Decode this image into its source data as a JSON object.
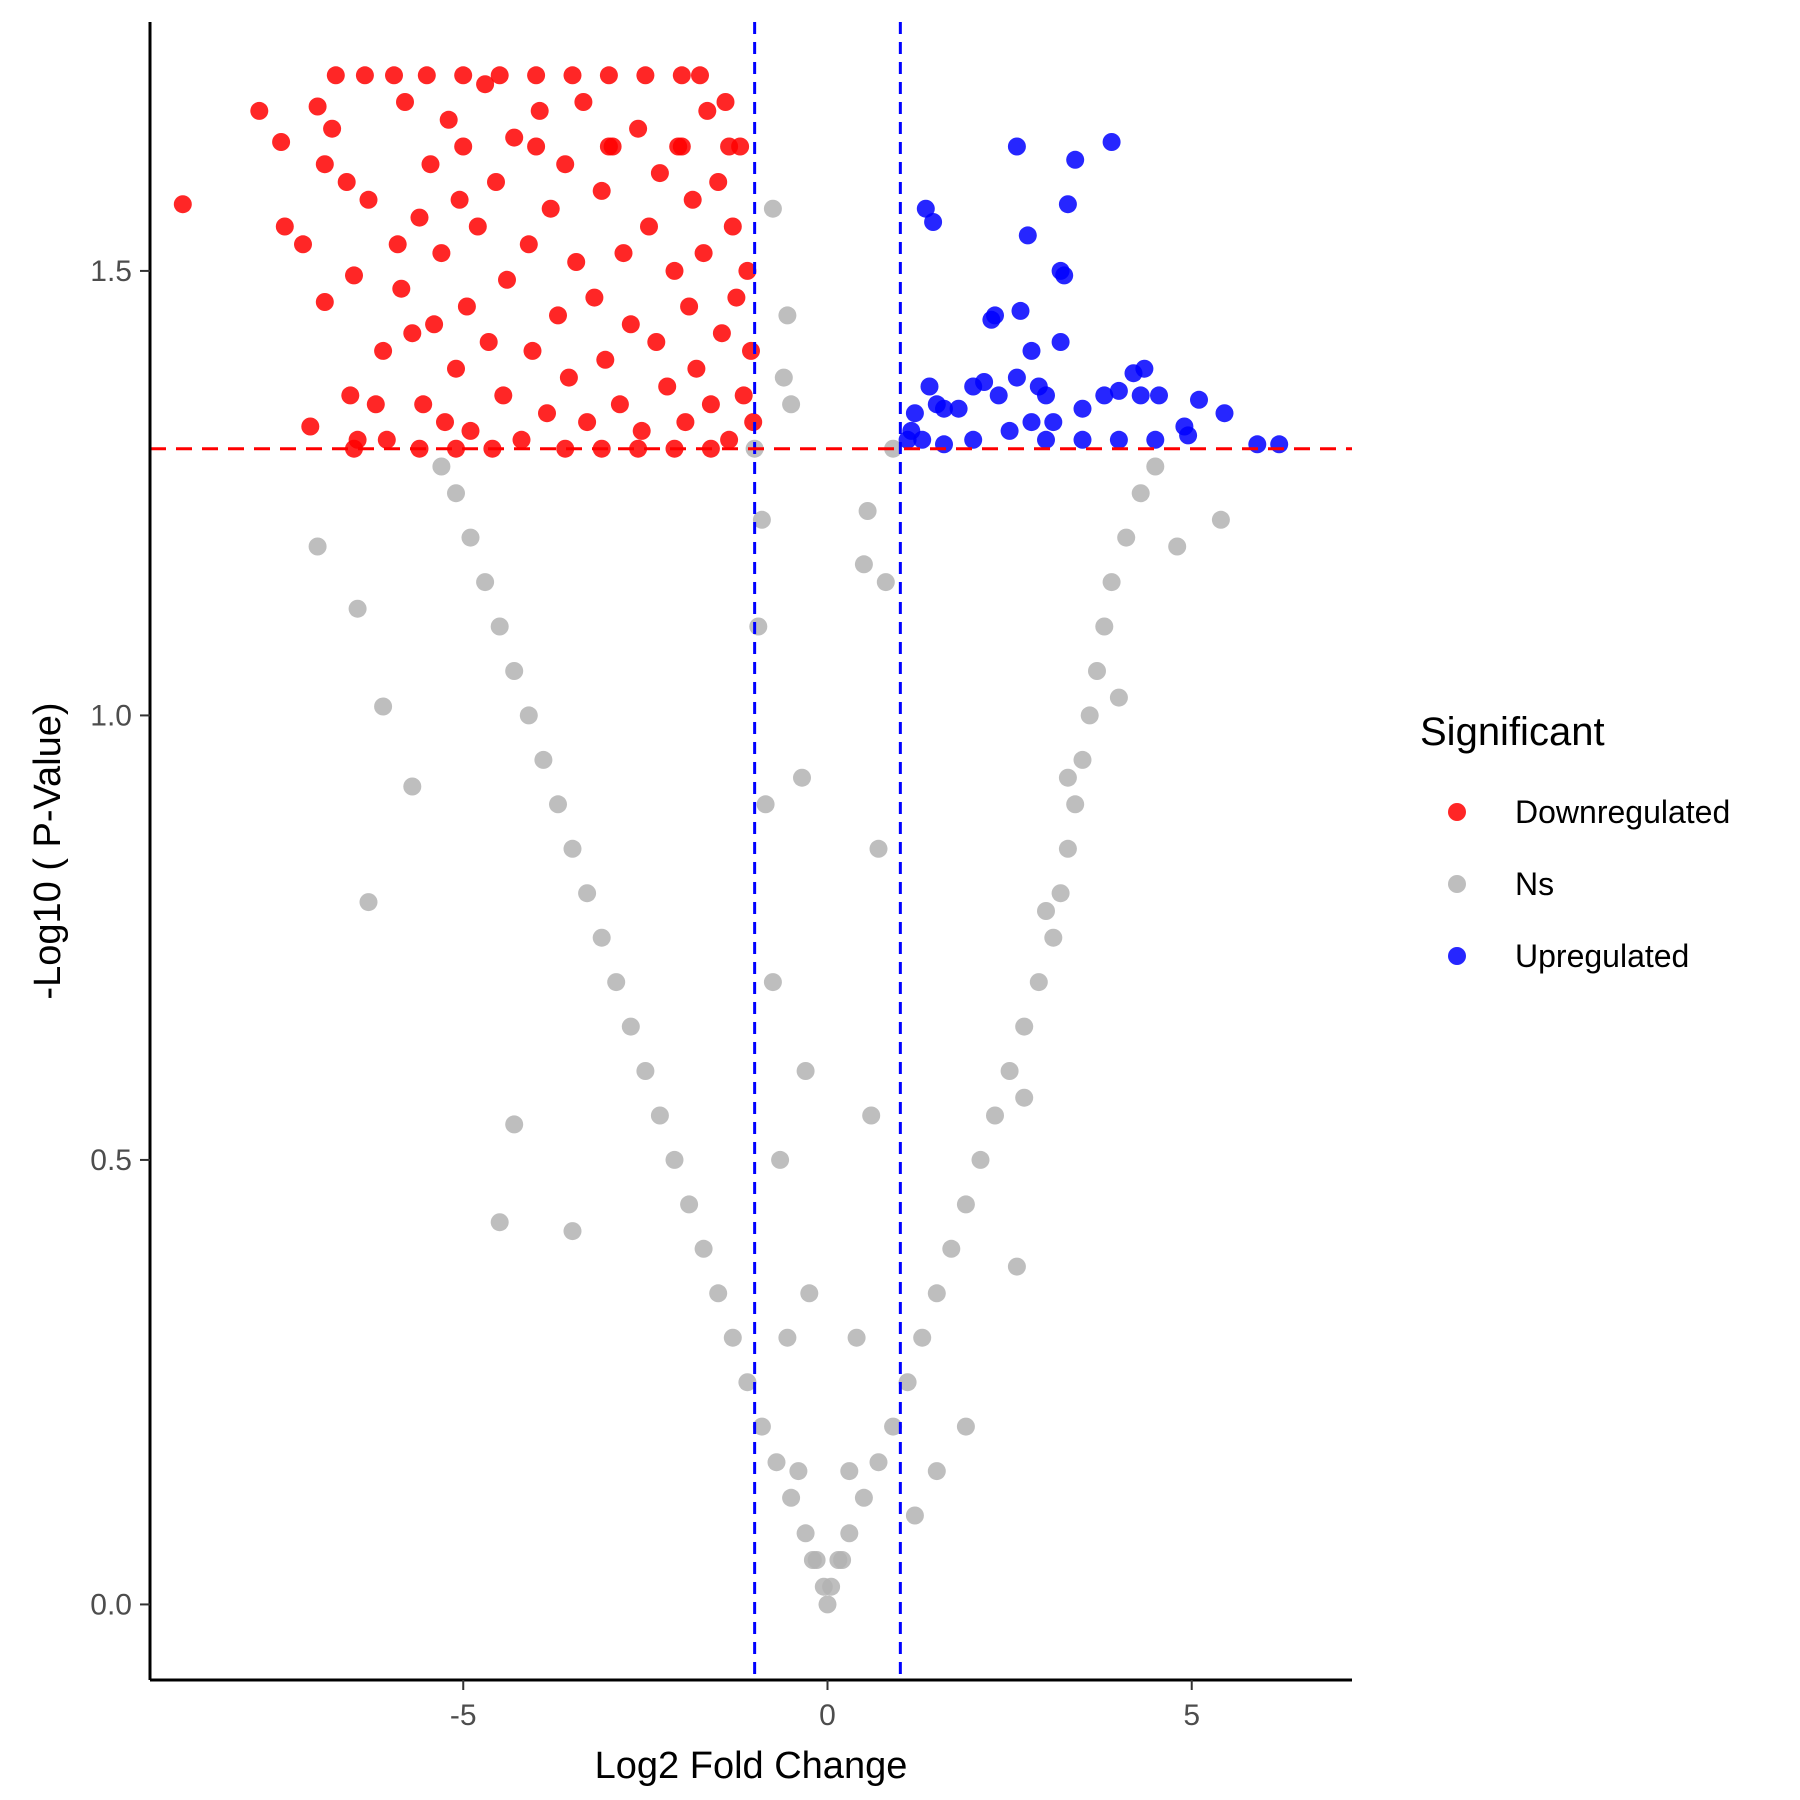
{
  "chart_data": {
    "type": "scatter",
    "title": "",
    "xlabel": "Log2 Fold Change",
    "ylabel": "-Log10 ( P-Value)",
    "xlim": [
      -9.3,
      7.2
    ],
    "ylim": [
      -0.085,
      1.78
    ],
    "x_ticks": [
      -5,
      0,
      5
    ],
    "x_tick_labels": [
      "-5",
      "0",
      "5"
    ],
    "y_ticks": [
      0.0,
      0.5,
      1.0,
      1.5
    ],
    "y_tick_labels": [
      "0.0",
      "0.5",
      "1.0",
      "1.5"
    ],
    "grid": false,
    "thresholds": {
      "log2fc": [
        -1,
        1
      ],
      "neg_log10_p": 1.3,
      "vertical_line_color": "#0000ff",
      "horizontal_line_color": "#ff0000"
    },
    "legend": {
      "title": "Significant",
      "position": "right",
      "entries": [
        {
          "label": "Downregulated",
          "color": "#ff0000"
        },
        {
          "label": "Ns",
          "color": "#b3b3b3"
        },
        {
          "label": "Upregulated",
          "color": "#0000ff"
        }
      ]
    },
    "series": [
      {
        "name": "Downregulated",
        "color": "#ff0000",
        "points": [
          [
            -8.85,
            1.575
          ],
          [
            -7.8,
            1.68
          ],
          [
            -7.5,
            1.645
          ],
          [
            -7.45,
            1.55
          ],
          [
            -7.2,
            1.53
          ],
          [
            -7.1,
            1.325
          ],
          [
            -7.0,
            1.685
          ],
          [
            -6.9,
            1.62
          ],
          [
            -6.8,
            1.66
          ],
          [
            -6.9,
            1.465
          ],
          [
            -6.6,
            1.6
          ],
          [
            -6.55,
            1.36
          ],
          [
            -6.5,
            1.495
          ],
          [
            -6.45,
            1.31
          ],
          [
            -6.3,
            1.58
          ],
          [
            -6.2,
            1.35
          ],
          [
            -6.1,
            1.41
          ],
          [
            -6.05,
            1.31
          ],
          [
            -5.9,
            1.53
          ],
          [
            -5.85,
            1.48
          ],
          [
            -5.8,
            1.69
          ],
          [
            -5.7,
            1.43
          ],
          [
            -5.6,
            1.56
          ],
          [
            -5.55,
            1.35
          ],
          [
            -5.45,
            1.62
          ],
          [
            -5.4,
            1.44
          ],
          [
            -5.3,
            1.52
          ],
          [
            -5.25,
            1.33
          ],
          [
            -5.2,
            1.67
          ],
          [
            -5.1,
            1.39
          ],
          [
            -5.05,
            1.58
          ],
          [
            -4.95,
            1.46
          ],
          [
            -4.9,
            1.32
          ],
          [
            -4.8,
            1.55
          ],
          [
            -4.7,
            1.71
          ],
          [
            -4.65,
            1.42
          ],
          [
            -4.55,
            1.6
          ],
          [
            -4.45,
            1.36
          ],
          [
            -4.4,
            1.49
          ],
          [
            -4.3,
            1.65
          ],
          [
            -4.2,
            1.31
          ],
          [
            -4.1,
            1.53
          ],
          [
            -4.05,
            1.41
          ],
          [
            -3.95,
            1.68
          ],
          [
            -3.85,
            1.34
          ],
          [
            -3.8,
            1.57
          ],
          [
            -3.7,
            1.45
          ],
          [
            -3.6,
            1.62
          ],
          [
            -3.55,
            1.38
          ],
          [
            -3.45,
            1.51
          ],
          [
            -3.35,
            1.69
          ],
          [
            -3.3,
            1.33
          ],
          [
            -3.2,
            1.47
          ],
          [
            -3.1,
            1.59
          ],
          [
            -3.05,
            1.4
          ],
          [
            -2.95,
            1.64
          ],
          [
            -2.85,
            1.35
          ],
          [
            -2.8,
            1.52
          ],
          [
            -2.7,
            1.44
          ],
          [
            -2.6,
            1.66
          ],
          [
            -2.55,
            1.32
          ],
          [
            -2.45,
            1.55
          ],
          [
            -2.35,
            1.42
          ],
          [
            -2.3,
            1.61
          ],
          [
            -2.2,
            1.37
          ],
          [
            -2.1,
            1.5
          ],
          [
            -2.05,
            1.64
          ],
          [
            -1.95,
            1.33
          ],
          [
            -1.9,
            1.46
          ],
          [
            -1.85,
            1.58
          ],
          [
            -1.8,
            1.39
          ],
          [
            -1.7,
            1.52
          ],
          [
            -1.65,
            1.68
          ],
          [
            -1.6,
            1.35
          ],
          [
            -1.5,
            1.6
          ],
          [
            -1.45,
            1.43
          ],
          [
            -1.4,
            1.69
          ],
          [
            -1.35,
            1.31
          ],
          [
            -1.3,
            1.55
          ],
          [
            -1.25,
            1.47
          ],
          [
            -1.2,
            1.64
          ],
          [
            -1.15,
            1.36
          ],
          [
            -1.1,
            1.5
          ],
          [
            -1.05,
            1.41
          ],
          [
            -1.02,
            1.33
          ],
          [
            -6.75,
            1.72
          ],
          [
            -6.35,
            1.72
          ],
          [
            -5.95,
            1.72
          ],
          [
            -5.5,
            1.72
          ],
          [
            -5.0,
            1.72
          ],
          [
            -4.5,
            1.72
          ],
          [
            -4.0,
            1.72
          ],
          [
            -3.5,
            1.72
          ],
          [
            -3.0,
            1.72
          ],
          [
            -2.5,
            1.72
          ],
          [
            -2.0,
            1.72
          ],
          [
            -1.75,
            1.72
          ],
          [
            -5.0,
            1.64
          ],
          [
            -4.0,
            1.64
          ],
          [
            -3.0,
            1.64
          ],
          [
            -2.0,
            1.64
          ],
          [
            -1.35,
            1.64
          ],
          [
            -5.6,
            1.3
          ],
          [
            -4.6,
            1.3
          ],
          [
            -3.6,
            1.3
          ],
          [
            -2.6,
            1.3
          ],
          [
            -1.6,
            1.3
          ],
          [
            -6.5,
            1.3
          ],
          [
            -5.1,
            1.3
          ],
          [
            -3.1,
            1.3
          ],
          [
            -2.1,
            1.3
          ]
        ]
      },
      {
        "name": "Ns",
        "color": "#b3b3b3",
        "points": [
          [
            0.0,
            0.0
          ],
          [
            -0.05,
            0.02
          ],
          [
            0.05,
            0.02
          ],
          [
            -0.15,
            0.05
          ],
          [
            0.15,
            0.05
          ],
          [
            -0.3,
            0.08
          ],
          [
            0.3,
            0.08
          ],
          [
            -0.5,
            0.12
          ],
          [
            0.5,
            0.12
          ],
          [
            -0.7,
            0.16
          ],
          [
            0.7,
            0.16
          ],
          [
            -0.9,
            0.2
          ],
          [
            0.9,
            0.2
          ],
          [
            -1.1,
            0.25
          ],
          [
            1.1,
            0.25
          ],
          [
            -1.3,
            0.3
          ],
          [
            1.3,
            0.3
          ],
          [
            -1.5,
            0.35
          ],
          [
            1.5,
            0.35
          ],
          [
            -1.7,
            0.4
          ],
          [
            1.7,
            0.4
          ],
          [
            -1.9,
            0.45
          ],
          [
            1.9,
            0.45
          ],
          [
            -2.1,
            0.5
          ],
          [
            2.1,
            0.5
          ],
          [
            -2.3,
            0.55
          ],
          [
            2.3,
            0.55
          ],
          [
            -2.5,
            0.6
          ],
          [
            2.5,
            0.6
          ],
          [
            -2.7,
            0.65
          ],
          [
            2.7,
            0.65
          ],
          [
            -2.9,
            0.7
          ],
          [
            2.9,
            0.7
          ],
          [
            -3.1,
            0.75
          ],
          [
            3.1,
            0.75
          ],
          [
            -3.3,
            0.8
          ],
          [
            3.2,
            0.8
          ],
          [
            -3.5,
            0.85
          ],
          [
            3.3,
            0.85
          ],
          [
            -3.7,
            0.9
          ],
          [
            3.4,
            0.9
          ],
          [
            -3.9,
            0.95
          ],
          [
            3.5,
            0.95
          ],
          [
            -4.1,
            1.0
          ],
          [
            3.6,
            1.0
          ],
          [
            -4.3,
            1.05
          ],
          [
            3.7,
            1.05
          ],
          [
            -4.5,
            1.1
          ],
          [
            3.8,
            1.1
          ],
          [
            -4.7,
            1.15
          ],
          [
            3.9,
            1.15
          ],
          [
            -4.9,
            1.2
          ],
          [
            4.1,
            1.2
          ],
          [
            -5.1,
            1.25
          ],
          [
            4.3,
            1.25
          ],
          [
            -5.3,
            1.28
          ],
          [
            4.5,
            1.28
          ],
          [
            -7.0,
            1.19
          ],
          [
            -6.45,
            1.12
          ],
          [
            -6.1,
            1.01
          ],
          [
            -5.7,
            0.92
          ],
          [
            -6.3,
            0.79
          ],
          [
            -4.5,
            0.43
          ],
          [
            -4.3,
            0.54
          ],
          [
            -3.5,
            0.42
          ],
          [
            5.4,
            1.22
          ],
          [
            4.8,
            1.19
          ],
          [
            4.0,
            1.02
          ],
          [
            3.3,
            0.93
          ],
          [
            3.0,
            0.78
          ],
          [
            2.7,
            0.57
          ],
          [
            2.6,
            0.38
          ],
          [
            1.9,
            0.2
          ],
          [
            1.5,
            0.15
          ],
          [
            1.2,
            0.1
          ],
          [
            0.55,
            1.23
          ],
          [
            0.5,
            1.17
          ],
          [
            0.9,
            1.3
          ],
          [
            0.8,
            1.15
          ],
          [
            0.7,
            0.85
          ],
          [
            0.6,
            0.55
          ],
          [
            0.4,
            0.3
          ],
          [
            0.3,
            0.15
          ],
          [
            0.2,
            0.05
          ],
          [
            -0.2,
            0.05
          ],
          [
            -0.4,
            0.15
          ],
          [
            -0.55,
            0.3
          ],
          [
            -0.65,
            0.5
          ],
          [
            -0.75,
            0.7
          ],
          [
            -0.85,
            0.9
          ],
          [
            -0.95,
            1.1
          ],
          [
            -1.0,
            1.3
          ],
          [
            -0.6,
            1.38
          ],
          [
            -0.55,
            1.45
          ],
          [
            -0.75,
            1.57
          ],
          [
            -0.5,
            1.35
          ],
          [
            -0.9,
            1.22
          ],
          [
            -0.35,
            0.93
          ],
          [
            -0.3,
            0.6
          ],
          [
            -0.25,
            0.35
          ]
        ]
      },
      {
        "name": "Upregulated",
        "color": "#0000ff",
        "points": [
          [
            1.35,
            1.57
          ],
          [
            1.45,
            1.555
          ],
          [
            2.6,
            1.64
          ],
          [
            3.9,
            1.645
          ],
          [
            3.4,
            1.625
          ],
          [
            3.3,
            1.575
          ],
          [
            2.75,
            1.54
          ],
          [
            3.2,
            1.5
          ],
          [
            3.25,
            1.495
          ],
          [
            2.3,
            1.45
          ],
          [
            2.25,
            1.445
          ],
          [
            2.65,
            1.455
          ],
          [
            2.8,
            1.41
          ],
          [
            3.2,
            1.42
          ],
          [
            2.6,
            1.38
          ],
          [
            2.15,
            1.375
          ],
          [
            2.35,
            1.36
          ],
          [
            2.0,
            1.37
          ],
          [
            1.4,
            1.37
          ],
          [
            1.6,
            1.345
          ],
          [
            1.2,
            1.34
          ],
          [
            1.5,
            1.35
          ],
          [
            1.8,
            1.345
          ],
          [
            2.9,
            1.37
          ],
          [
            3.0,
            1.36
          ],
          [
            3.5,
            1.345
          ],
          [
            3.8,
            1.36
          ],
          [
            4.2,
            1.385
          ],
          [
            4.35,
            1.39
          ],
          [
            4.0,
            1.365
          ],
          [
            4.3,
            1.36
          ],
          [
            4.55,
            1.36
          ],
          [
            5.1,
            1.355
          ],
          [
            5.45,
            1.34
          ],
          [
            4.9,
            1.325
          ],
          [
            4.95,
            1.315
          ],
          [
            5.9,
            1.305
          ],
          [
            6.2,
            1.305
          ],
          [
            1.3,
            1.31
          ],
          [
            1.6,
            1.305
          ],
          [
            2.0,
            1.31
          ],
          [
            2.5,
            1.32
          ],
          [
            3.0,
            1.31
          ],
          [
            3.5,
            1.31
          ],
          [
            4.0,
            1.31
          ],
          [
            4.5,
            1.31
          ],
          [
            1.1,
            1.31
          ],
          [
            1.15,
            1.32
          ],
          [
            2.8,
            1.33
          ],
          [
            3.1,
            1.33
          ]
        ]
      }
    ]
  }
}
